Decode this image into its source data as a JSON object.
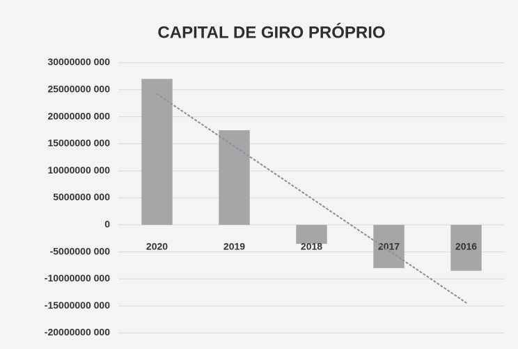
{
  "chart_data": {
    "type": "bar",
    "title": "CAPITAL DE GIRO PRÓPRIO",
    "categories": [
      "2020",
      "2019",
      "2018",
      "2017",
      "2016"
    ],
    "values": [
      27000000000,
      17500000000,
      -3500000000,
      -8000000000,
      -8500000000
    ],
    "color": "#a6a6a6",
    "trendline": true,
    "trendline_color": "#8a93a6",
    "ylim": [
      -20000000000,
      30000000000
    ],
    "yticks": [
      {
        "value": -20000000000,
        "label": "-20000000 000"
      },
      {
        "value": -15000000000,
        "label": "-15000000 000"
      },
      {
        "value": -10000000000,
        "label": "-10000000 000"
      },
      {
        "value": -5000000000,
        "label": "-5000000 000"
      },
      0,
      {
        "value": 5000000000,
        "label": "5000000 000"
      },
      {
        "value": 10000000000,
        "label": "10000000 000"
      },
      {
        "value": 15000000000,
        "label": "15000000 000"
      },
      {
        "value": 20000000000,
        "label": "20000000 000"
      },
      {
        "value": 25000000000,
        "label": "25000000 000"
      },
      {
        "value": 30000000000,
        "label": "30000000 000"
      }
    ],
    "grid": true
  }
}
